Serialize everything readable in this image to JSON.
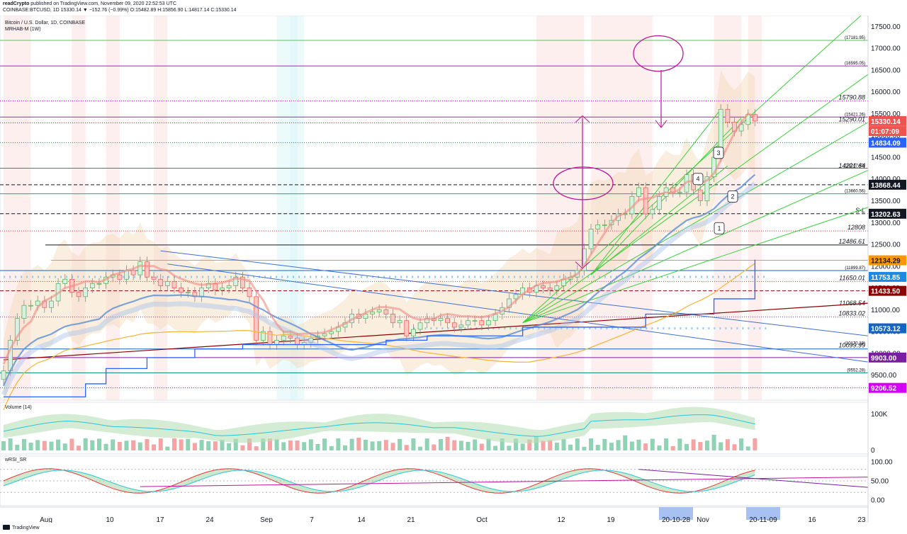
{
  "header": {
    "publisher": "readCrypto",
    "published_text": " published on TradingView.com, November 09, 2020 22:52:53 UTC",
    "symbol_line": "COINBASE:BTCUSD, 1D 15330.14 ▼ −152.76 (−0.99%) O:15482.89 H:15856.90 L:14817.14 C:15330.14"
  },
  "legend": {
    "title": "Bitcoin / U.S. Dollar, 1D, COINBASE",
    "indicator": "MRHAB-M (1W)",
    "volume_label": "Volume (14)",
    "rsi_label": "wRSI_SR"
  },
  "footer": {
    "brand": "TradingView"
  },
  "chart_data": {
    "type": "line",
    "title": "Bitcoin / U.S. Dollar, 1D, COINBASE",
    "price_axis": {
      "range": [
        8925,
        17750
      ],
      "ticks": [
        "17500.00",
        "17000.00",
        "16500.00",
        "16000.00",
        "15500.00",
        "15000.00",
        "14500.00",
        "14000.00",
        "13500.00",
        "13000.00",
        "12500.00",
        "12000.00",
        "11500.00",
        "11000.00",
        "10500.00",
        "10000.00",
        "9500.00"
      ]
    },
    "date_axis": {
      "ticks": [
        "Aug",
        "10",
        "17",
        "24",
        "Sep",
        "7",
        "14",
        "21",
        "Oct",
        "12",
        "19",
        "Nov",
        "16",
        "23"
      ],
      "highlighted": [
        "20-10-28",
        "20-11-09"
      ]
    },
    "price_tags": [
      {
        "text": "15330.14",
        "bg": "#ef5350",
        "color": "#ffffff",
        "price": 15330.14
      },
      {
        "text": "01:07:09",
        "bg": "#ef5350",
        "color": "#ffffff",
        "price": 15100
      },
      {
        "text": "14834.09",
        "bg": "#2962ff",
        "color": "#ffffff",
        "price": 14834.09
      },
      {
        "text": "13868.44",
        "bg": "#131722",
        "color": "#ffffff",
        "price": 13868.44
      },
      {
        "text": "13202.63",
        "bg": "#131722",
        "color": "#ffffff",
        "price": 13202.63
      },
      {
        "text": "12134.29",
        "bg": "#ff9800",
        "color": "#131722",
        "price": 12134.29
      },
      {
        "text": "11753.85",
        "bg": "#1e88e5",
        "color": "#ffffff",
        "price": 11753.85
      },
      {
        "text": "11433.50",
        "bg": "#8b0000",
        "color": "#ffffff",
        "price": 11433.5
      },
      {
        "text": "10573.12",
        "bg": "#1565c0",
        "color": "#ffffff",
        "price": 10573.12
      },
      {
        "text": "9903.00",
        "bg": "#7b1fa2",
        "color": "#ffffff",
        "price": 9903.0
      },
      {
        "text": "9206.52",
        "bg": "#d500f9",
        "color": "#ffffff",
        "price": 9206.52
      }
    ],
    "level_labels": [
      {
        "text": "(17181.95)",
        "price": 17181.95
      },
      {
        "text": "(16595.05)",
        "price": 16595.05
      },
      {
        "text": "15790.88",
        "price": 15790.88
      },
      {
        "text": "(15421.26)",
        "price": 15421.26
      },
      {
        "text": "15290.01",
        "price": 15290.01
      },
      {
        "text": "(14247.40)",
        "price": 14247.4
      },
      {
        "text": "14221.64",
        "price": 14221.64
      },
      {
        "text": "(13660.56)",
        "price": 13660.56
      },
      {
        "text": "S-L",
        "price": 13202.63
      },
      {
        "text": "12808",
        "price": 12808
      },
      {
        "text": "12486.61",
        "price": 12486.61
      },
      {
        "text": "(11899.87)",
        "price": 11899.87
      },
      {
        "text": "11650.01",
        "price": 11650.01
      },
      {
        "text": "11068.54",
        "price": 11068.54
      },
      {
        "text": "10833.02",
        "price": 10833.02
      },
      {
        "text": "(10170.18)",
        "price": 10170.18
      },
      {
        "text": "10099.99",
        "price": 10099.99
      },
      {
        "text": "(9552.28)",
        "price": 9552.28
      }
    ],
    "callouts": [
      "1",
      "2",
      "3",
      "4"
    ],
    "close_series": [
      9600,
      10300,
      10800,
      11100,
      11100,
      11200,
      11050,
      11200,
      11600,
      11700,
      11400,
      11300,
      11500,
      11600,
      11600,
      11750,
      11800,
      11700,
      11900,
      11800,
      12100,
      11750,
      11700,
      11550,
      11650,
      11500,
      11400,
      11400,
      11300,
      11500,
      11600,
      11450,
      11500,
      11550,
      11750,
      11500,
      11300,
      10300,
      10500,
      10200,
      10300,
      10400,
      10350,
      10200,
      10250,
      10350,
      10400,
      10450,
      10500,
      10600,
      10700,
      10900,
      10800,
      10900,
      10950,
      11000,
      10900,
      10700,
      10750,
      10400,
      10550,
      10700,
      10800,
      10750,
      10800,
      10700,
      10600,
      10650,
      10750,
      10750,
      10650,
      10750,
      10900,
      11050,
      11250,
      11350,
      11500,
      11400,
      11550,
      11500,
      11450,
      11550,
      11700,
      11750,
      11900,
      12400,
      12850,
      12950,
      12950,
      13050,
      13200,
      13200,
      13600,
      13800,
      13200,
      13300,
      13600,
      13800,
      13700,
      13700,
      14100,
      13750,
      13500,
      14050,
      14500,
      15600,
      15300,
      15100,
      15250,
      15480,
      15330
    ],
    "volume_axis": {
      "ticks": [
        "100K",
        "0"
      ]
    },
    "rsi_axis": {
      "ticks": [
        "100.00",
        "50.00",
        "0.00"
      ]
    }
  }
}
